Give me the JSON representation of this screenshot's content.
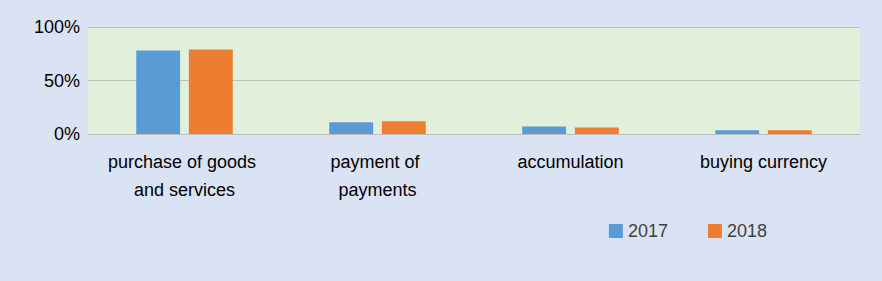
{
  "chart_data": {
    "type": "bar",
    "categories": [
      "purchase of goods and services",
      "payment of payments",
      "accumulation",
      "buying currency"
    ],
    "series": [
      {
        "name": "2017",
        "color": "#5B9BD5",
        "values": [
          78,
          11,
          7,
          3.5
        ]
      },
      {
        "name": "2018",
        "color": "#ED7D31",
        "values": [
          79,
          12,
          6,
          3.5
        ]
      }
    ],
    "ylim": [
      0,
      100
    ],
    "yticks": [
      {
        "value": 0,
        "label": "0%"
      },
      {
        "value": 50,
        "label": "50%"
      },
      {
        "value": 100,
        "label": "100%"
      }
    ],
    "grid": true,
    "legend": "bottom-right"
  }
}
